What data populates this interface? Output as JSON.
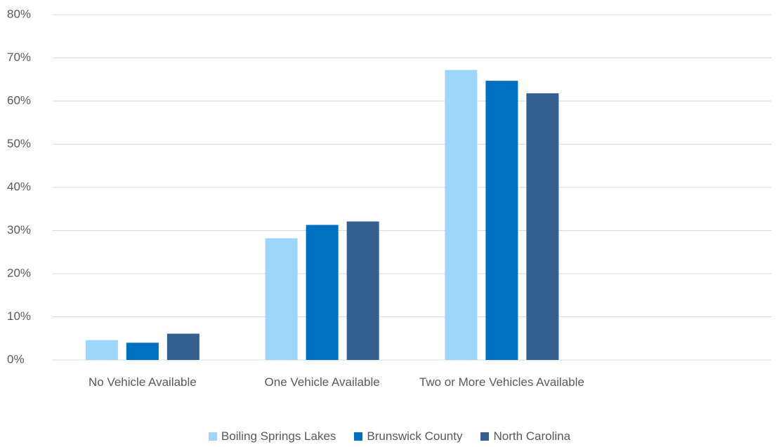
{
  "chart_data": {
    "type": "bar",
    "categories": [
      "No Vehicle Available",
      "One Vehicle Available",
      "Two or More Vehicles Available",
      null
    ],
    "series": [
      {
        "name": "Boiling Springs Lakes",
        "color": "#9dd5fb",
        "values": [
          4.6,
          28.2,
          67.2,
          null
        ]
      },
      {
        "name": "Brunswick County",
        "color": "#0070c0",
        "values": [
          4.0,
          31.3,
          64.7,
          null
        ]
      },
      {
        "name": "North Carolina",
        "color": "#335f91",
        "values": [
          6.1,
          32.1,
          61.8,
          null
        ]
      }
    ],
    "ylim": [
      0,
      80
    ],
    "yticks": [
      {
        "value": 0,
        "label": "0%"
      },
      {
        "value": 10,
        "label": "10%"
      },
      {
        "value": 20,
        "label": "20%"
      },
      {
        "value": 30,
        "label": "30%"
      },
      {
        "value": 40,
        "label": "40%"
      },
      {
        "value": 50,
        "label": "50%"
      },
      {
        "value": 60,
        "label": "60%"
      },
      {
        "value": 70,
        "label": "70%"
      },
      {
        "value": 80,
        "label": "80%"
      }
    ],
    "grid": true,
    "legend": "bottom"
  }
}
